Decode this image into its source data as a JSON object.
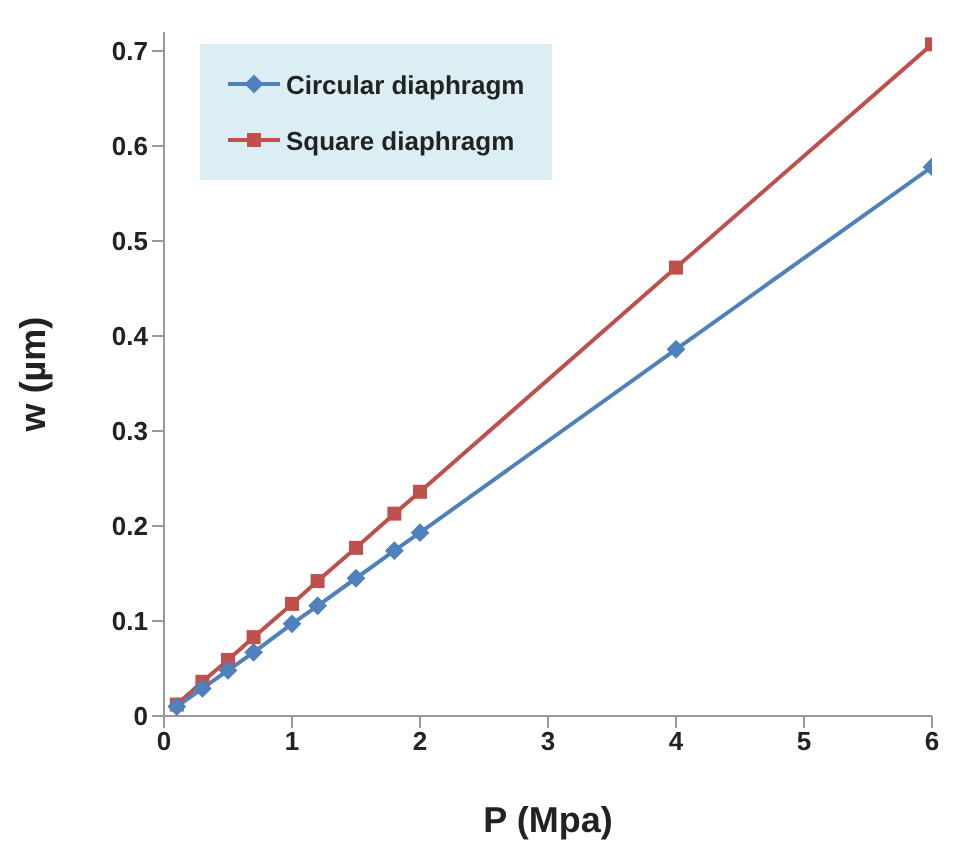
{
  "chart_data": {
    "type": "line",
    "xlabel": "P (Mpa)",
    "ylabel": "w (µm)",
    "x": [
      0.1,
      0.3,
      0.5,
      0.7,
      1,
      1.2,
      1.5,
      1.8,
      2,
      4,
      6
    ],
    "series": [
      {
        "name": "Circular diaphragm",
        "color": "#4f81bd",
        "marker": "diamond",
        "values": [
          0.01,
          0.029,
          0.048,
          0.067,
          0.097,
          0.116,
          0.145,
          0.174,
          0.193,
          0.386,
          0.578
        ]
      },
      {
        "name": "Square diaphragm",
        "color": "#c0504d",
        "marker": "square",
        "values": [
          0.012,
          0.036,
          0.059,
          0.083,
          0.118,
          0.142,
          0.177,
          0.213,
          0.236,
          0.472,
          0.707
        ]
      }
    ],
    "xlim": [
      0,
      6
    ],
    "xticks": [
      0,
      1,
      2,
      3,
      4,
      5,
      6
    ],
    "ylim": [
      0,
      0.72
    ],
    "yticks": [
      0,
      0.1,
      0.2,
      0.3,
      0.4,
      0.5,
      0.6,
      0.7
    ],
    "grid": false,
    "legend": "top left",
    "line_style": "solid"
  }
}
